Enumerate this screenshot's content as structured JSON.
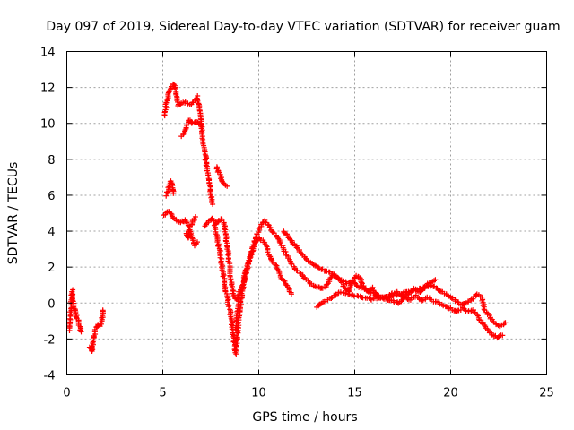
{
  "chart_data": {
    "type": "scatter",
    "title": "Day 097 of 2019, Sidereal Day-to-day VTEC variation (SDTVAR) for receiver guam",
    "xlabel": "GPS time / hours",
    "ylabel": "SDTVAR / TECUs",
    "xlim": [
      0,
      25
    ],
    "ylim": [
      -4,
      14
    ],
    "xticks": [
      "0",
      "5",
      "10",
      "15",
      "20",
      "25"
    ],
    "yticks": [
      "-4",
      "-2",
      "0",
      "2",
      "4",
      "6",
      "8",
      "10",
      "12",
      "14"
    ],
    "grid": true,
    "marker": "+",
    "series": [
      {
        "name": "guam",
        "color": "#ff0000",
        "segments": [
          [
            [
              0.12,
              -1.5
            ],
            [
              0.2,
              -0.4
            ],
            [
              0.28,
              0.7
            ],
            [
              0.35,
              -0.2
            ],
            [
              0.45,
              -0.5
            ],
            [
              0.55,
              -0.9
            ],
            [
              0.65,
              -1.2
            ],
            [
              0.75,
              -1.6
            ]
          ],
          [
            [
              1.22,
              -2.5
            ],
            [
              1.3,
              -2.7
            ],
            [
              1.38,
              -2.2
            ],
            [
              1.45,
              -1.8
            ],
            [
              1.52,
              -1.3
            ],
            [
              1.6,
              -1.2
            ],
            [
              1.7,
              -1.3
            ],
            [
              1.8,
              -1.1
            ],
            [
              1.88,
              -0.4
            ]
          ],
          [
            [
              5.05,
              4.9
            ],
            [
              5.3,
              5.1
            ],
            [
              5.6,
              4.7
            ],
            [
              5.9,
              4.5
            ],
            [
              6.2,
              4.6
            ],
            [
              6.4,
              4.2
            ],
            [
              6.55,
              4.5
            ],
            [
              6.7,
              4.8
            ]
          ],
          [
            [
              5.1,
              10.4
            ],
            [
              5.2,
              11.2
            ],
            [
              5.3,
              11.7
            ],
            [
              5.4,
              12.0
            ],
            [
              5.5,
              12.1
            ],
            [
              5.6,
              12.2
            ],
            [
              5.7,
              11.5
            ],
            [
              5.8,
              11.0
            ],
            [
              6.0,
              11.1
            ],
            [
              6.2,
              11.2
            ],
            [
              6.4,
              11.0
            ],
            [
              6.6,
              11.2
            ],
            [
              6.8,
              11.5
            ],
            [
              7.0,
              10.0
            ]
          ],
          [
            [
              5.2,
              6.0
            ],
            [
              5.3,
              6.4
            ],
            [
              5.45,
              6.8
            ],
            [
              5.55,
              6.1
            ]
          ],
          [
            [
              6.0,
              9.3
            ],
            [
              6.2,
              9.6
            ],
            [
              6.35,
              10.2
            ],
            [
              6.5,
              10.0
            ],
            [
              6.7,
              10.1
            ],
            [
              6.9,
              10.0
            ],
            [
              7.05,
              9.8
            ]
          ],
          [
            [
              6.2,
              3.9
            ],
            [
              6.3,
              3.6
            ],
            [
              6.4,
              4.1
            ],
            [
              6.65,
              3.2
            ],
            [
              6.8,
              3.4
            ]
          ],
          [
            [
              7.0,
              10.0
            ],
            [
              7.1,
              9.0
            ],
            [
              7.2,
              8.3
            ],
            [
              7.3,
              7.5
            ],
            [
              7.4,
              6.8
            ],
            [
              7.5,
              6.1
            ],
            [
              7.6,
              5.5
            ]
          ],
          [
            [
              7.2,
              4.3
            ],
            [
              7.4,
              4.6
            ],
            [
              7.6,
              4.7
            ],
            [
              7.8,
              4.4
            ],
            [
              8.0,
              4.7
            ],
            [
              8.2,
              4.4
            ],
            [
              8.3,
              3.6
            ],
            [
              8.4,
              2.8
            ],
            [
              8.5,
              1.8
            ],
            [
              8.6,
              1.0
            ],
            [
              8.7,
              0.4
            ],
            [
              8.8,
              0.2
            ],
            [
              8.9,
              0.3
            ]
          ],
          [
            [
              7.8,
              7.6
            ],
            [
              7.9,
              7.3
            ],
            [
              8.0,
              7.1
            ],
            [
              8.1,
              6.8
            ],
            [
              8.2,
              6.6
            ],
            [
              8.35,
              6.5
            ]
          ],
          [
            [
              7.7,
              4.4
            ],
            [
              7.8,
              3.8
            ],
            [
              7.9,
              3.3
            ],
            [
              8.0,
              2.7
            ],
            [
              8.1,
              1.9
            ],
            [
              8.2,
              1.3
            ],
            [
              8.3,
              0.6
            ],
            [
              8.4,
              0.1
            ],
            [
              8.5,
              -0.4
            ],
            [
              8.6,
              -1.1
            ],
            [
              8.7,
              -1.9
            ],
            [
              8.75,
              -2.5
            ],
            [
              8.8,
              -2.8
            ],
            [
              8.9,
              -1.6
            ],
            [
              9.0,
              -0.5
            ],
            [
              9.1,
              0.3
            ],
            [
              9.2,
              0.9
            ],
            [
              9.3,
              1.5
            ],
            [
              9.4,
              1.9
            ],
            [
              9.5,
              2.5
            ],
            [
              9.6,
              2.9
            ],
            [
              9.7,
              2.9
            ],
            [
              9.8,
              3.3
            ],
            [
              10.0,
              3.6
            ],
            [
              10.2,
              3.5
            ],
            [
              10.4,
              3.1
            ],
            [
              10.6,
              2.5
            ],
            [
              10.8,
              2.2
            ],
            [
              11.0,
              1.9
            ],
            [
              11.2,
              1.4
            ],
            [
              11.4,
              1.1
            ],
            [
              11.6,
              0.7
            ],
            [
              11.7,
              0.5
            ]
          ],
          [
            [
              8.8,
              -1.5
            ],
            [
              8.9,
              -0.3
            ],
            [
              9.0,
              0.6
            ],
            [
              9.1,
              0.8
            ],
            [
              9.2,
              1.1
            ],
            [
              9.3,
              1.8
            ],
            [
              9.5,
              2.3
            ],
            [
              9.7,
              3.1
            ],
            [
              9.9,
              3.8
            ],
            [
              10.1,
              4.3
            ],
            [
              10.3,
              4.6
            ],
            [
              10.5,
              4.3
            ],
            [
              10.7,
              4.0
            ],
            [
              10.9,
              3.8
            ],
            [
              11.1,
              3.4
            ],
            [
              11.3,
              3.0
            ],
            [
              11.5,
              2.6
            ],
            [
              11.7,
              2.2
            ],
            [
              11.9,
              1.9
            ],
            [
              12.1,
              1.7
            ],
            [
              12.3,
              1.5
            ],
            [
              12.5,
              1.3
            ],
            [
              12.7,
              1.1
            ],
            [
              12.9,
              0.9
            ],
            [
              13.1,
              0.9
            ],
            [
              13.3,
              0.8
            ],
            [
              13.5,
              0.9
            ],
            [
              13.7,
              1.3
            ],
            [
              13.9,
              1.6
            ],
            [
              14.1,
              1.4
            ],
            [
              14.3,
              1.2
            ],
            [
              14.5,
              0.8
            ],
            [
              14.7,
              0.6
            ],
            [
              14.9,
              1.3
            ],
            [
              15.1,
              1.5
            ],
            [
              15.3,
              1.4
            ],
            [
              15.5,
              0.8
            ],
            [
              15.7,
              0.7
            ],
            [
              15.9,
              0.9
            ],
            [
              16.1,
              0.4
            ],
            [
              16.3,
              0.3
            ],
            [
              16.6,
              0.3
            ],
            [
              16.9,
              0.5
            ],
            [
              17.2,
              0.6
            ],
            [
              17.5,
              0.4
            ],
            [
              17.8,
              0.5
            ],
            [
              18.1,
              0.8
            ],
            [
              18.4,
              0.6
            ],
            [
              18.7,
              0.9
            ],
            [
              19.0,
              1.0
            ],
            [
              19.3,
              0.8
            ],
            [
              19.6,
              0.6
            ],
            [
              19.9,
              0.4
            ],
            [
              20.2,
              0.2
            ],
            [
              20.5,
              -0.1
            ],
            [
              20.8,
              0.0
            ],
            [
              21.1,
              0.2
            ],
            [
              21.4,
              0.5
            ],
            [
              21.6,
              0.3
            ],
            [
              21.8,
              -0.4
            ],
            [
              22.0,
              -0.7
            ],
            [
              22.2,
              -1.0
            ],
            [
              22.4,
              -1.2
            ],
            [
              22.6,
              -1.3
            ],
            [
              22.85,
              -1.1
            ]
          ],
          [
            [
              11.3,
              4.0
            ],
            [
              11.6,
              3.6
            ],
            [
              11.9,
              3.2
            ],
            [
              12.2,
              2.8
            ],
            [
              12.5,
              2.4
            ],
            [
              12.8,
              2.2
            ],
            [
              13.1,
              2.0
            ],
            [
              13.4,
              1.8
            ],
            [
              13.7,
              1.7
            ],
            [
              14.0,
              1.5
            ],
            [
              14.3,
              1.3
            ],
            [
              14.6,
              1.1
            ],
            [
              14.9,
              1.2
            ],
            [
              15.2,
              0.9
            ],
            [
              15.5,
              0.8
            ],
            [
              15.8,
              0.6
            ],
            [
              16.1,
              0.5
            ],
            [
              16.4,
              0.3
            ],
            [
              16.7,
              0.2
            ],
            [
              17.0,
              0.1
            ],
            [
              17.3,
              0.0
            ],
            [
              17.6,
              0.3
            ],
            [
              17.9,
              0.2
            ],
            [
              18.2,
              0.4
            ],
            [
              18.5,
              0.1
            ],
            [
              18.8,
              0.3
            ],
            [
              19.1,
              0.1
            ],
            [
              19.4,
              0.0
            ],
            [
              19.7,
              -0.2
            ],
            [
              20.0,
              -0.3
            ],
            [
              20.3,
              -0.5
            ],
            [
              20.6,
              -0.3
            ],
            [
              20.9,
              -0.5
            ],
            [
              21.2,
              -0.4
            ],
            [
              21.5,
              -0.9
            ],
            [
              21.8,
              -1.3
            ],
            [
              22.1,
              -1.7
            ],
            [
              22.4,
              -1.9
            ],
            [
              22.7,
              -1.8
            ]
          ],
          [
            [
              13.0,
              -0.2
            ],
            [
              14.2,
              0.6
            ],
            [
              15.9,
              0.2
            ],
            [
              17.4,
              0.5
            ],
            [
              18.6,
              0.9
            ],
            [
              19.2,
              1.3
            ]
          ]
        ]
      }
    ]
  }
}
